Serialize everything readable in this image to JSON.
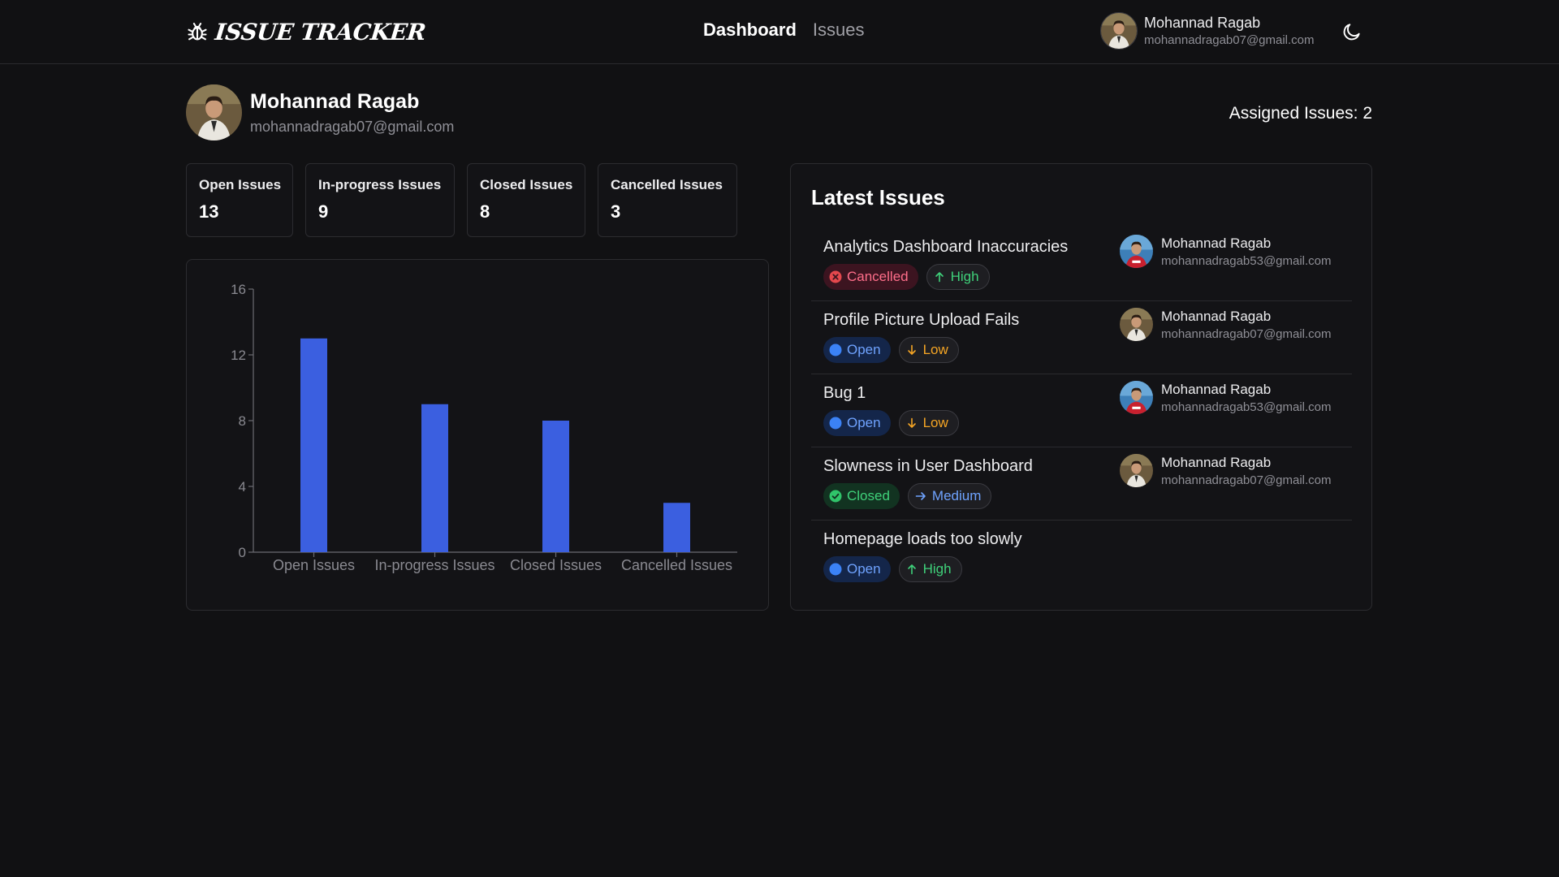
{
  "app": {
    "title": "ISSUE TRACKER"
  },
  "nav": {
    "links": [
      {
        "label": "Dashboard",
        "active": true
      },
      {
        "label": "Issues",
        "active": false
      }
    ],
    "user": {
      "name": "Mohannad Ragab",
      "email": "mohannadragab07@gmail.com"
    },
    "theme_icon": "moon-icon"
  },
  "profile": {
    "name": "Mohannad Ragab",
    "email": "mohannadragab07@gmail.com",
    "assigned_label": "Assigned Issues: 2"
  },
  "stats": [
    {
      "label": "Open Issues",
      "value": "13"
    },
    {
      "label": "In-progress Issues",
      "value": "9"
    },
    {
      "label": "Closed Issues",
      "value": "8"
    },
    {
      "label": "Cancelled Issues",
      "value": "3"
    }
  ],
  "chart_data": {
    "type": "bar",
    "categories": [
      "Open Issues",
      "In-progress Issues",
      "Closed Issues",
      "Cancelled Issues"
    ],
    "values": [
      13,
      9,
      8,
      3
    ],
    "yticks": [
      0,
      4,
      8,
      12,
      16
    ],
    "ylim": [
      0,
      16
    ],
    "title": "",
    "xlabel": "",
    "ylabel": "",
    "grid": false,
    "bar_color": "#3b5fe0"
  },
  "latest": {
    "title": "Latest Issues",
    "issues": [
      {
        "title": "Analytics Dashboard Inaccuracies",
        "status": "Cancelled",
        "status_key": "cancelled",
        "priority": "High",
        "priority_key": "high",
        "assignee": {
          "name": "Mohannad Ragab",
          "email": "mohannadragab53@gmail.com",
          "avatar": "red-shirt"
        }
      },
      {
        "title": "Profile Picture Upload Fails",
        "status": "Open",
        "status_key": "open",
        "priority": "Low",
        "priority_key": "low",
        "assignee": {
          "name": "Mohannad Ragab",
          "email": "mohannadragab07@gmail.com",
          "avatar": "white-shirt"
        }
      },
      {
        "title": "Bug 1",
        "status": "Open",
        "status_key": "open",
        "priority": "Low",
        "priority_key": "low",
        "assignee": {
          "name": "Mohannad Ragab",
          "email": "mohannadragab53@gmail.com",
          "avatar": "red-shirt"
        }
      },
      {
        "title": "Slowness in User Dashboard",
        "status": "Closed",
        "status_key": "closed",
        "priority": "Medium",
        "priority_key": "medium",
        "assignee": {
          "name": "Mohannad Ragab",
          "email": "mohannadragab07@gmail.com",
          "avatar": "white-shirt"
        }
      },
      {
        "title": "Homepage loads too slowly",
        "status": "Open",
        "status_key": "open",
        "priority": "High",
        "priority_key": "high",
        "assignee": null
      }
    ]
  }
}
